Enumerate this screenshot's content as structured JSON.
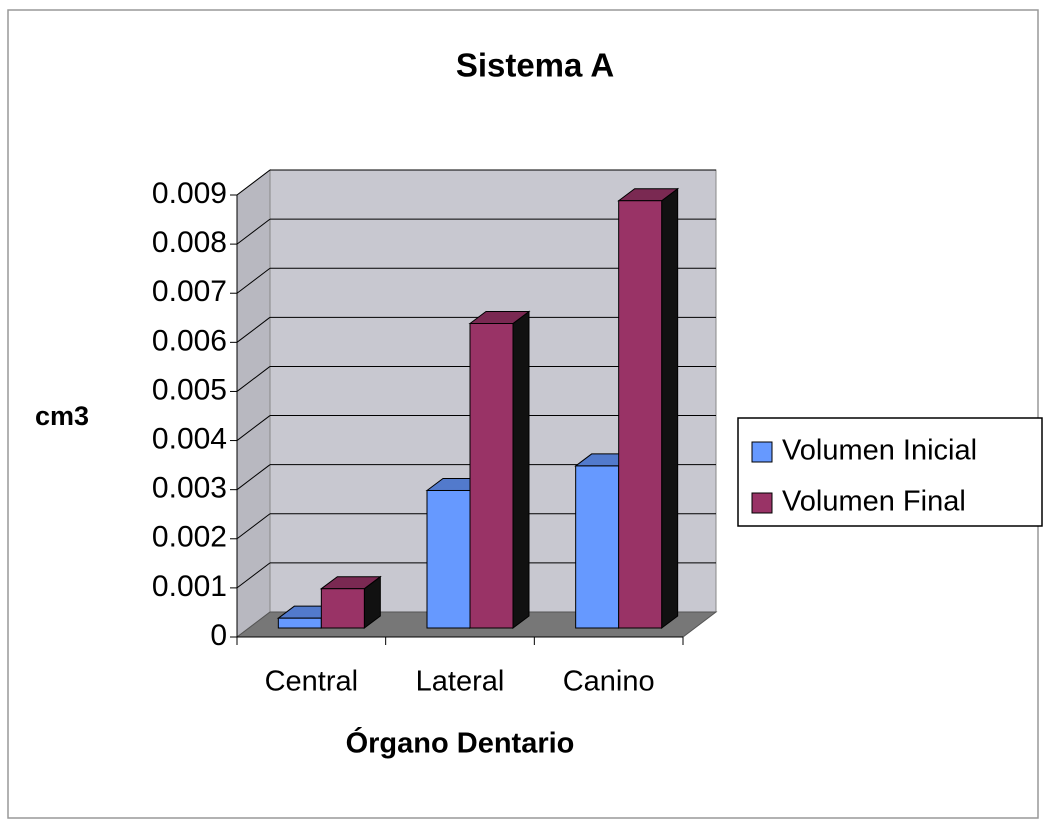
{
  "chart_data": {
    "type": "bar3d",
    "title": "Sistema A",
    "x_label": "Órgano Dentario",
    "y_label": "cm3",
    "categories": [
      "Central",
      "Lateral",
      "Canino"
    ],
    "series": [
      {
        "name": "Volumen Inicial",
        "color": "#6699ff",
        "values": [
          0.0002,
          0.0028,
          0.0033
        ]
      },
      {
        "name": "Volumen Final",
        "color": "#993366",
        "values": [
          0.0008,
          0.0062,
          0.0087
        ]
      }
    ],
    "ylim": [
      0,
      0.009
    ],
    "yticks": [
      0,
      0.001,
      0.002,
      0.003,
      0.004,
      0.005,
      0.006,
      0.007,
      0.008,
      0.009
    ],
    "grid": true,
    "legend": "right"
  }
}
